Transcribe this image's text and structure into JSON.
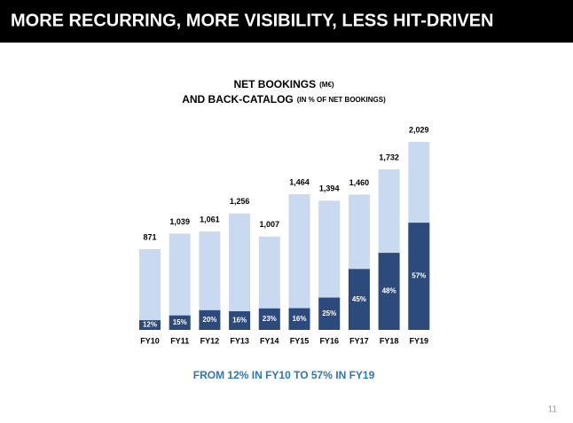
{
  "header": {
    "title": "MORE RECURRING, MORE VISIBILITY, LESS HIT-DRIVEN"
  },
  "chart_data": {
    "type": "bar",
    "title": "NET BOOKINGS",
    "title_unit": "(M€)",
    "subtitle": "AND BACK-CATALOG",
    "subtitle_unit": "(IN % OF NET BOOKINGS)",
    "categories": [
      "FY10",
      "FY11",
      "FY12",
      "FY13",
      "FY14",
      "FY15",
      "FY16",
      "FY17",
      "FY18",
      "FY19"
    ],
    "series": [
      {
        "color": "#c9d9ef",
        "values": [
          871,
          1039,
          1061,
          1256,
          1007,
          1464,
          1394,
          1460,
          1732,
          2029
        ],
        "value_labels": [
          "871",
          "1,039",
          "1,061",
          "1,256",
          "1,007",
          "1,464",
          "1,394",
          "1,460",
          "1,732",
          "2,029"
        ]
      },
      {
        "color": "#2d4a7c",
        "values": [
          12,
          15,
          20,
          16,
          23,
          16,
          25,
          45,
          48,
          57
        ],
        "value_labels": [
          "12%",
          "15%",
          "20%",
          "16%",
          "23%",
          "16%",
          "25%",
          "45%",
          "48%",
          "57%"
        ]
      }
    ],
    "annotation": "FROM 12% IN FY10 TO 57% IN FY19"
  },
  "page_number": "11"
}
